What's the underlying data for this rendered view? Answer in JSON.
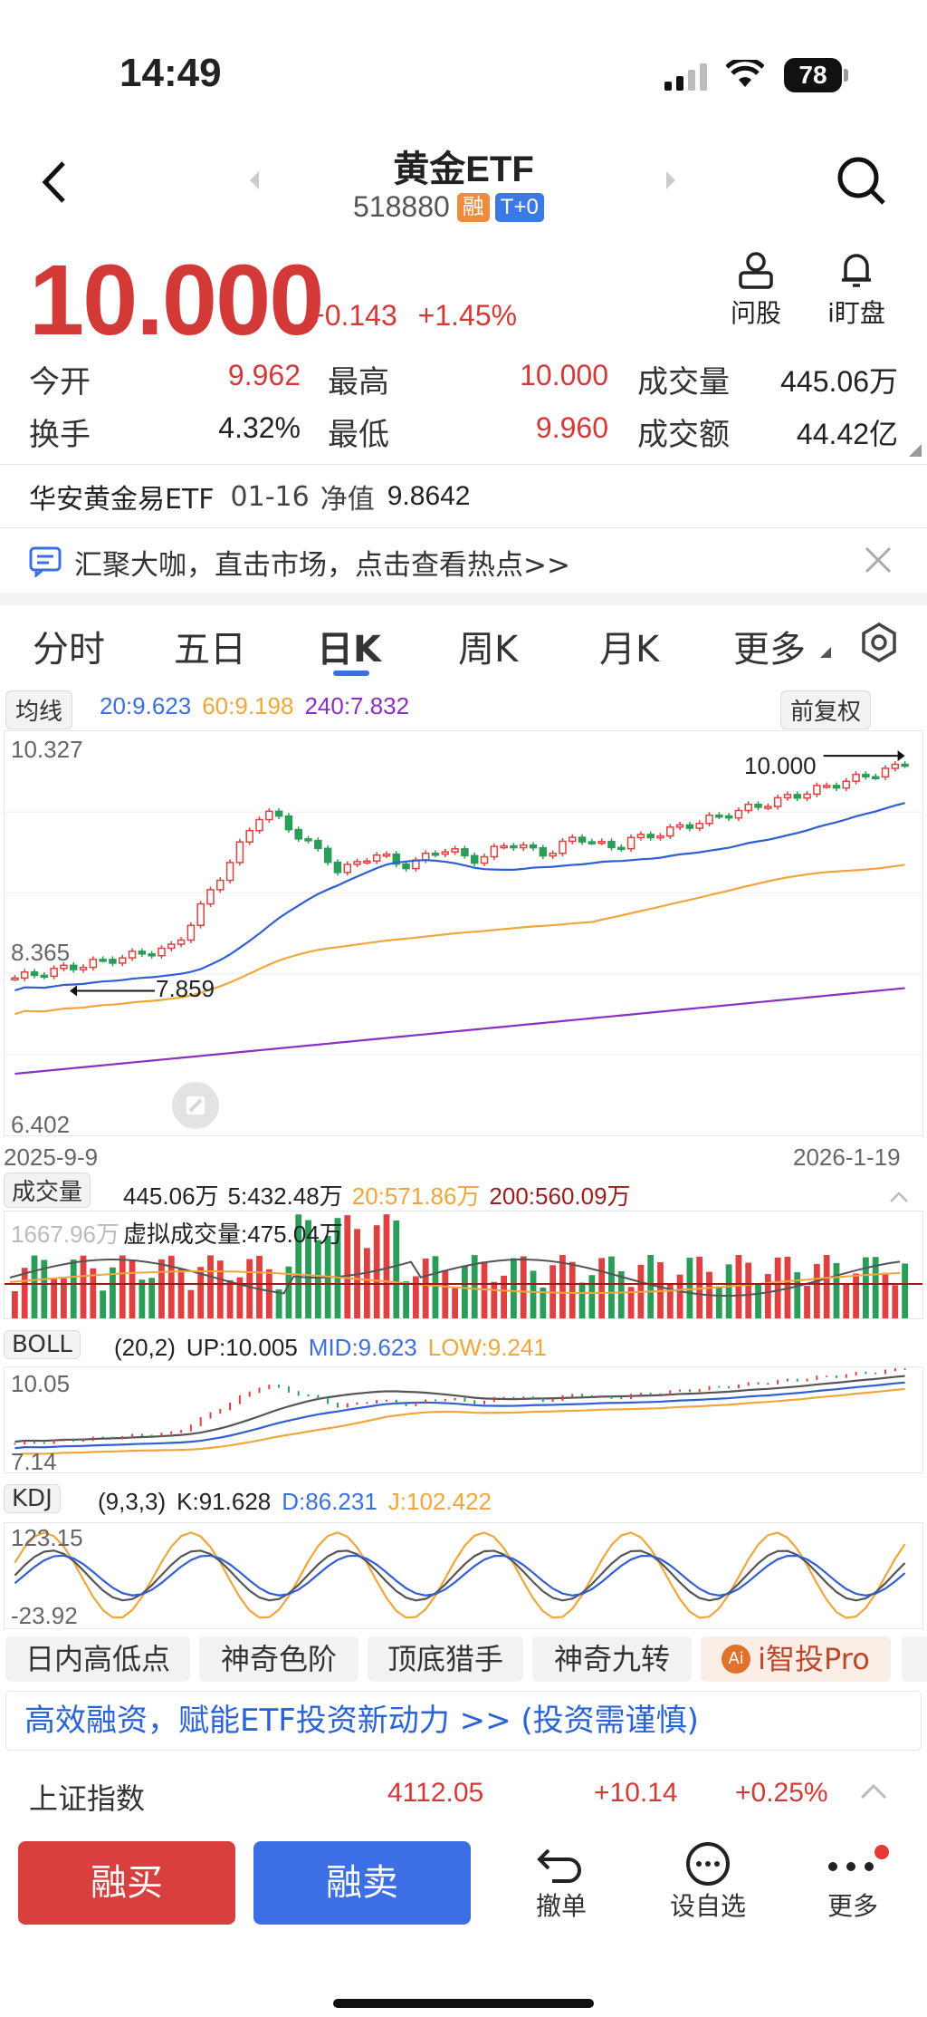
{
  "status": {
    "time": "14:49",
    "battery": "78"
  },
  "header": {
    "title": "黄金ETF",
    "code": "518880",
    "tag_margin": "融",
    "tag_t0": "T+0"
  },
  "quote": {
    "price": "10.000",
    "change": "+0.143",
    "change_pct": "+1.45%",
    "actions": [
      {
        "label": "问股",
        "icon": "person-icon"
      },
      {
        "label": "i盯盘",
        "icon": "bell-icon"
      }
    ],
    "stats": [
      {
        "label": "今开",
        "value": "9.962",
        "color": "#d33a37"
      },
      {
        "label": "最高",
        "value": "10.000",
        "color": "#d33a37"
      },
      {
        "label": "成交量",
        "value": "445.06万",
        "color": "#222"
      },
      {
        "label": "换手",
        "value": "4.32%",
        "color": "#222"
      },
      {
        "label": "最低",
        "value": "9.960",
        "color": "#d33a37"
      },
      {
        "label": "成交额",
        "value": "44.42亿",
        "color": "#222"
      }
    ]
  },
  "nav_info": {
    "fund": "华安黄金易ETF",
    "date": "01-16",
    "nav_label": "净值",
    "nav": "9.8642"
  },
  "banner": {
    "text": "汇聚大咖，直击市场，点击查看热点>>"
  },
  "tabs": [
    "分时",
    "五日",
    "日K",
    "周K",
    "月K",
    "更多"
  ],
  "active_tab": 2,
  "ma_bar": {
    "label": "均线",
    "ma20": "20:9.623",
    "ma60": "60:9.198",
    "ma240": "240:7.832",
    "adjust": "前复权"
  },
  "kchart": {
    "y_top": "10.327",
    "y_mid": "8.365",
    "y_bot": "6.402",
    "x_start": "2025-9-9",
    "x_end": "2026-1-19",
    "max_label": "10.000",
    "min_label": "7.859"
  },
  "vol_bar": {
    "label": "成交量",
    "v": "445.06万",
    "v5": "5:432.48万",
    "v20": "20:571.86万",
    "v200": "200:560.09万",
    "max": "1667.96万",
    "virtual": "虚拟成交量:475.04万"
  },
  "boll_bar": {
    "label": "BOLL",
    "params": "(20,2)",
    "up": "UP:10.005",
    "mid": "MID:9.623",
    "low": "LOW:9.241",
    "y_top": "10.05",
    "y_bot": "7.14"
  },
  "kdj_bar": {
    "label": "KDJ",
    "params": "(9,3,3)",
    "k": "K:91.628",
    "d": "D:86.231",
    "j": "J:102.422",
    "y_top": "123.15",
    "y_bot": "-23.92"
  },
  "tools": [
    "日内高低点",
    "神奇色阶",
    "顶底猎手",
    "神奇九转",
    "i智投Pro"
  ],
  "promo": {
    "text": "高效融资，赋能ETF投资新动力 >> (投资需谨慎)"
  },
  "index": {
    "name": "上证指数",
    "value": "4112.05",
    "change": "+10.14",
    "pct": "+0.25%"
  },
  "bottom": {
    "buy": "融买",
    "sell": "融卖",
    "actions": [
      "撤单",
      "设自选",
      "更多"
    ]
  },
  "chart_data": {
    "type": "candlestick",
    "x_range": [
      "2025-9-9",
      "2026-1-19"
    ],
    "ylim": [
      6.402,
      10.327
    ],
    "last_close": 10.0,
    "period_high": 10.0,
    "period_low": 7.859,
    "series": [
      {
        "name": "20",
        "last": 9.623
      },
      {
        "name": "60",
        "last": 9.198
      },
      {
        "name": "240",
        "last": 7.832
      }
    ]
  }
}
